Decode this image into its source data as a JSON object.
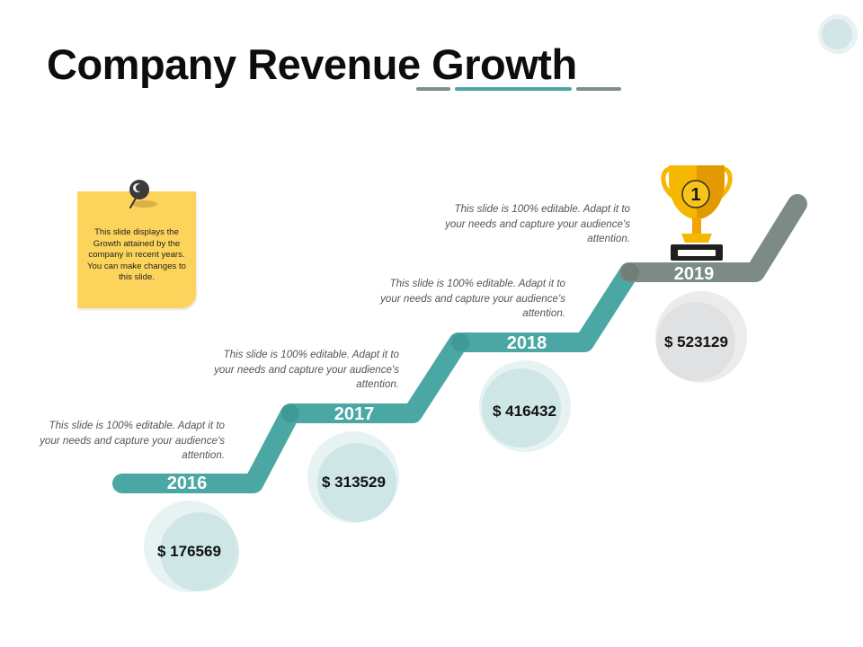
{
  "title": "Company Revenue Growth",
  "note": "This slide displays the Growth attained by the company in recent years. You can make changes to this slide.",
  "colors": {
    "teal": "#4aa7a4",
    "gray": "#7c8b84",
    "underline_gray": "#7f8c88",
    "note_yellow": "#fdd45b",
    "trophy_gold": "#f5b700"
  },
  "trophy_rank": "1",
  "milestones": [
    {
      "year": "2016",
      "value": "$ 176569",
      "description": "This slide is 100% editable. Adapt it to your needs and capture your audience's attention."
    },
    {
      "year": "2017",
      "value": "$ 313529",
      "description": "This slide is 100% editable. Adapt it to your needs and capture your audience's attention."
    },
    {
      "year": "2018",
      "value": "$ 416432",
      "description": "This slide is 100% editable. Adapt it to your needs and capture your audience's attention."
    },
    {
      "year": "2019",
      "value": "$ 523129",
      "description": "This slide is 100% editable. Adapt it to your needs and capture your audience's attention."
    }
  ],
  "icons": {
    "pin": "pushpin-icon",
    "trophy": "trophy-icon"
  }
}
